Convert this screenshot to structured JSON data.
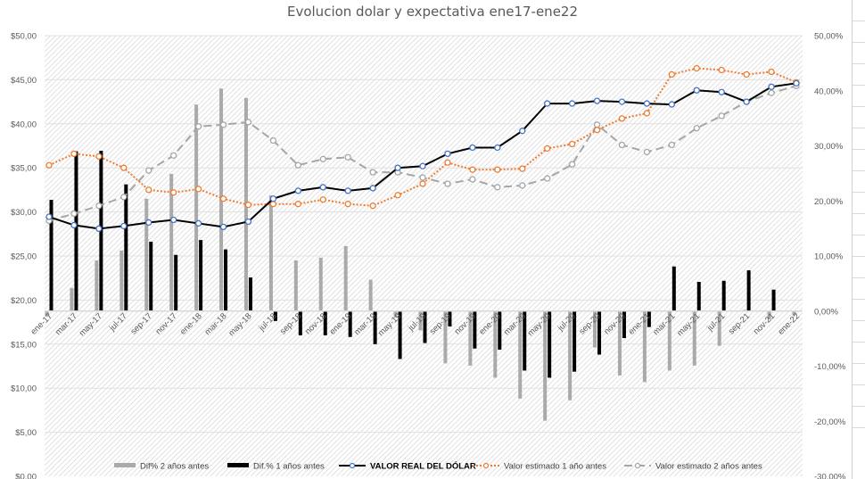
{
  "chart_data": {
    "type": "bar+line",
    "title": "Evolucion dolar y expectativa ene17-ene22",
    "categories": [
      "ene-17",
      "mar-17",
      "may-17",
      "jul-17",
      "sep-17",
      "nov-17",
      "ene-18",
      "mar-18",
      "may-18",
      "jul-18",
      "sep-18",
      "nov-18",
      "ene-19",
      "mar-19",
      "may-19",
      "jul-19",
      "sep-19",
      "nov-19",
      "ene-20",
      "mar-20",
      "may-20",
      "jul-20",
      "sep-20",
      "nov-20",
      "ene-21",
      "mar-21",
      "may-21",
      "jul-21",
      "sep-21",
      "nov-21",
      "ene-22"
    ],
    "left_axis": {
      "min": 0,
      "max": 50,
      "step": 5,
      "tick_labels": [
        "$0,00",
        "$5,00",
        "$10,00",
        "$15,00",
        "$20,00",
        "$25,00",
        "$30,00",
        "$35,00",
        "$40,00",
        "$45,00",
        "$50,00"
      ]
    },
    "right_axis": {
      "min": -30,
      "max": 50,
      "step": 10,
      "tick_labels": [
        "-30,00%",
        "-20,00%",
        "-10,00%",
        "0,00%",
        "10,00%",
        "20,00%",
        "30,00%",
        "40,00%",
        "50,00%"
      ]
    },
    "grid": true,
    "legend_position": "bottom",
    "series": [
      {
        "name": "Dif% 2 años antes",
        "kind": "bar",
        "axis": "right",
        "color": "#aaaaaa",
        "values": [
          -1.0,
          4.2,
          9.2,
          11.0,
          20.4,
          24.9,
          37.5,
          40.4,
          38.7,
          21.0,
          9.2,
          9.7,
          11.8,
          5.7,
          -1.2,
          -3.5,
          -9.5,
          -9.9,
          -12.1,
          -15.9,
          -19.9,
          -16.2,
          -6.6,
          -11.7,
          -12.9,
          -10.8,
          -9.9,
          -6.3,
          0.2,
          -1.5,
          -0.8
        ]
      },
      {
        "name": "Dif.% 1 años antes",
        "kind": "bar",
        "axis": "right",
        "color": "#000000",
        "values": [
          20.2,
          29.0,
          29.1,
          23.0,
          12.6,
          10.2,
          12.9,
          11.2,
          6.1,
          -1.8,
          -4.4,
          -4.4,
          -4.7,
          -6.0,
          -8.7,
          -5.8,
          -2.8,
          -6.8,
          -7.0,
          -10.8,
          -12.1,
          -11.0,
          -7.9,
          -4.9,
          -2.9,
          8.1,
          5.3,
          5.5,
          7.4,
          3.9,
          0.0
        ]
      },
      {
        "name": "VALOR REAL DEL DÓLAR",
        "kind": "line",
        "axis": "left",
        "color": "#000000",
        "marker_color": "#4472c4",
        "dash": "solid",
        "values": [
          29.45,
          28.5,
          28.1,
          28.4,
          28.8,
          29.1,
          28.7,
          28.3,
          28.9,
          31.5,
          32.4,
          32.8,
          32.4,
          32.7,
          35.0,
          35.2,
          36.6,
          37.3,
          37.3,
          39.2,
          42.3,
          42.3,
          42.6,
          42.5,
          42.3,
          42.2,
          43.8,
          43.6,
          42.5,
          44.2,
          44.6
        ]
      },
      {
        "name": "Valor estimado 1 año antes",
        "kind": "line",
        "axis": "left",
        "color": "#ed7d31",
        "marker_color": "#ed7d31",
        "dash": "dotted",
        "values": [
          35.3,
          36.6,
          36.3,
          35.0,
          32.5,
          32.2,
          32.6,
          31.5,
          30.8,
          30.9,
          30.9,
          31.4,
          30.9,
          30.7,
          31.9,
          33.2,
          35.6,
          34.8,
          34.8,
          34.9,
          37.2,
          37.7,
          39.3,
          40.6,
          41.2,
          45.6,
          46.3,
          46.1,
          45.6,
          45.9,
          44.7
        ]
      },
      {
        "name": "Valor estimado 2 años antes",
        "kind": "line",
        "axis": "left",
        "color": "#a6a6a6",
        "marker_color": "#a6a6a6",
        "dash": "dashed",
        "values": [
          29.0,
          29.8,
          30.7,
          31.7,
          34.7,
          36.4,
          39.7,
          39.9,
          40.2,
          38.1,
          35.3,
          36.0,
          36.2,
          34.5,
          34.5,
          33.9,
          33.2,
          33.7,
          32.8,
          33.0,
          33.8,
          35.4,
          39.9,
          37.6,
          36.8,
          37.6,
          39.5,
          40.9,
          42.5,
          43.5,
          44.3
        ]
      }
    ]
  }
}
